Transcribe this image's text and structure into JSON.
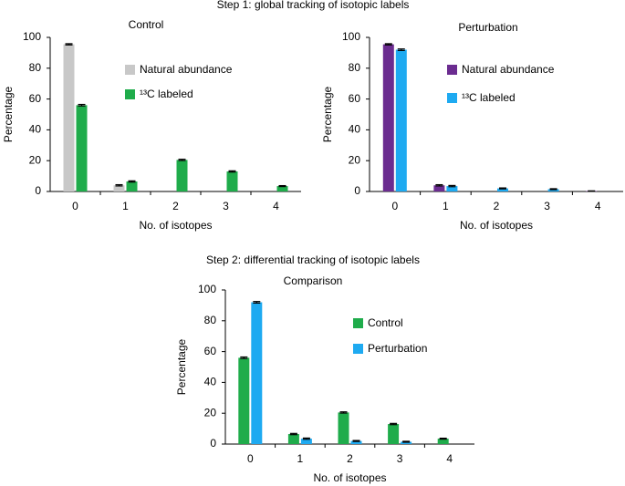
{
  "chart_data": [
    {
      "type": "bar",
      "group_title": "Step 1: global tracking of isotopic labels",
      "title": "Control",
      "xlabel": "No. of isotopes",
      "ylabel": "Percentage",
      "categories": [
        "0",
        "1",
        "2",
        "3",
        "4"
      ],
      "series": [
        {
          "name": "Natural abundance",
          "color": "#c8c8c8",
          "values": [
            95.5,
            4,
            0,
            0,
            0
          ],
          "errors": [
            0.4,
            0.4,
            0,
            0,
            0
          ]
        },
        {
          "name": "¹³C labeled",
          "color": "#1fac4b",
          "values": [
            56,
            6.5,
            20.5,
            13,
            3.5
          ],
          "errors": [
            0.5,
            0.4,
            0.4,
            0.4,
            0.3
          ]
        }
      ],
      "ylim": [
        0,
        100
      ],
      "yticks": [
        0,
        20,
        40,
        60,
        80,
        100
      ],
      "grid": false
    },
    {
      "type": "bar",
      "title": "Perturbation",
      "xlabel": "No. of isotopes",
      "ylabel": "Percentage",
      "categories": [
        "0",
        "1",
        "2",
        "3",
        "4"
      ],
      "series": [
        {
          "name": "Natural abundance",
          "color": "#6b2c90",
          "values": [
            95.5,
            4,
            0,
            0,
            0.3
          ],
          "errors": [
            0.4,
            0.4,
            0,
            0,
            0.1
          ]
        },
        {
          "name": "¹³C labeled",
          "color": "#1eaaf1",
          "values": [
            92,
            3.5,
            2,
            1.5,
            0
          ],
          "errors": [
            0.5,
            0.4,
            0.3,
            0.3,
            0
          ]
        }
      ],
      "ylim": [
        0,
        100
      ],
      "yticks": [
        0,
        20,
        40,
        60,
        80,
        100
      ],
      "grid": false
    },
    {
      "type": "bar",
      "group_title": "Step 2: differential tracking of isotopic labels",
      "title": "Comparison",
      "xlabel": "No. of isotopes",
      "ylabel": "Percentage",
      "categories": [
        "0",
        "1",
        "2",
        "3",
        "4"
      ],
      "series": [
        {
          "name": "Control",
          "color": "#1fac4b",
          "values": [
            56,
            6.5,
            20.5,
            13,
            3.5
          ],
          "errors": [
            0.5,
            0.4,
            0.4,
            0.4,
            0.3
          ]
        },
        {
          "name": "Perturbation",
          "color": "#1eaaf1",
          "values": [
            92,
            3.5,
            2,
            1.5,
            0
          ],
          "errors": [
            0.5,
            0.4,
            0.3,
            0.3,
            0
          ]
        }
      ],
      "ylim": [
        0,
        100
      ],
      "yticks": [
        0,
        20,
        40,
        60,
        80,
        100
      ],
      "grid": false
    }
  ]
}
